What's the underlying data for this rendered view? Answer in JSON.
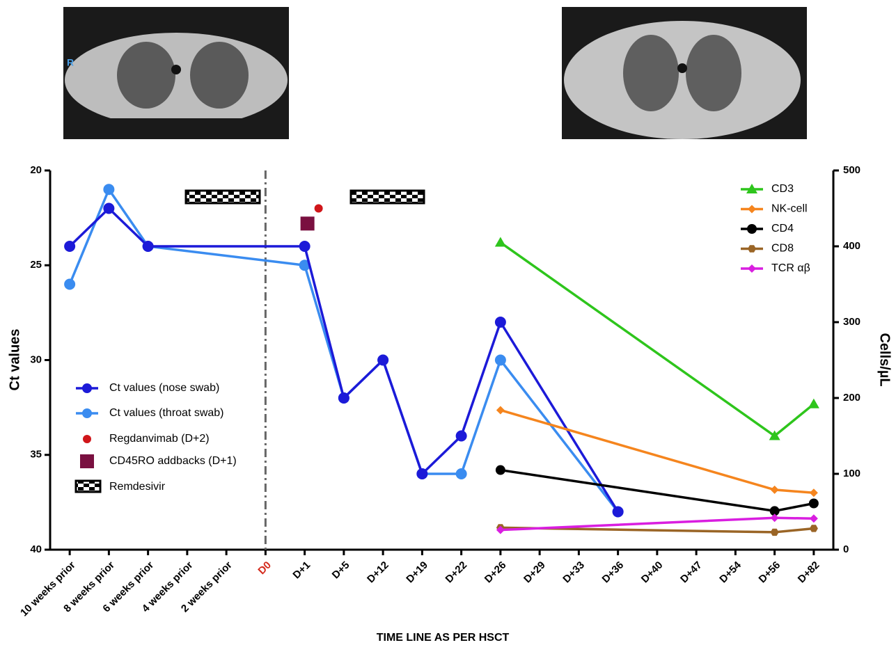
{
  "chart_data": {
    "type": "line",
    "x_label": "TIME LINE AS PER HSCT",
    "y_label": "Ct values",
    "y2_label": "Cells/µL",
    "image_label": "R",
    "categories": [
      "10 weeks prior",
      "8 weeks prior",
      "6 weeks prior",
      "4 weeks prior",
      "2 weeks prior",
      "D0",
      "D+1",
      "D+5",
      "D+12",
      "D+19",
      "D+22",
      "D+26",
      "D+29",
      "D+33",
      "D+36",
      "D+40",
      "D+47",
      "D+54",
      "D+56",
      "D+82"
    ],
    "highlight_index": 5,
    "highlight_color": "#d42a1c",
    "ylim": [
      40,
      20
    ],
    "yticks": [
      20,
      25,
      30,
      35,
      40
    ],
    "y2lim": [
      0,
      500
    ],
    "y2ticks": [
      0,
      100,
      200,
      300,
      400,
      500
    ],
    "treatment": "Remdesivir",
    "series": [
      {
        "name": "Ct values (throat swab)",
        "color": "#3a8cf0",
        "marker": "circle",
        "line": true,
        "legend": "left",
        "x": [
          "10 weeks prior",
          "8 weeks prior",
          "6 weeks prior",
          "D+1",
          "D+5",
          "D+12",
          "D+19",
          "D+22",
          "D+26",
          "D+36"
        ],
        "values": [
          26,
          21,
          24,
          25,
          32,
          30,
          36,
          36,
          30,
          38
        ]
      },
      {
        "name": "Ct values (nose swab)",
        "color": "#1c1ad8",
        "marker": "circle",
        "line": true,
        "legend": "left",
        "x": [
          "10 weeks prior",
          "8 weeks prior",
          "6 weeks prior",
          "D+1",
          "D+5",
          "D+12",
          "D+19",
          "D+22",
          "D+26",
          "D+36"
        ],
        "values": [
          24,
          22,
          24,
          24,
          32,
          30,
          36,
          34,
          28,
          38
        ]
      },
      {
        "name": "Regdanvimab (D+2)",
        "color": "#d0161a",
        "marker": "dot",
        "line": false,
        "legend": "left",
        "x": [
          "D+1"
        ],
        "values": [
          22
        ]
      },
      {
        "name": "CD45RO addbacks (D+1)",
        "color": "#7a1040",
        "marker": "square",
        "line": false,
        "legend": "left",
        "x": [
          "D+1"
        ],
        "values": [
          22.8
        ]
      },
      {
        "name": "CD3",
        "color": "#2ec51c",
        "marker": "triangle",
        "line": true,
        "axis": "y2",
        "legend": "right",
        "x": [
          "D+26",
          "D+56",
          "D+82"
        ],
        "values": [
          405,
          150,
          192
        ]
      },
      {
        "name": "NK-cell",
        "color": "#f5851e",
        "marker": "diamond",
        "line": true,
        "axis": "y2",
        "legend": "right",
        "x": [
          "D+26",
          "D+56",
          "D+82"
        ],
        "values": [
          184,
          79,
          75
        ]
      },
      {
        "name": "CD4",
        "color": "#000000",
        "marker": "circle",
        "line": true,
        "axis": "y2",
        "legend": "right",
        "x": [
          "D+26",
          "D+56",
          "D+82"
        ],
        "values": [
          105,
          51,
          61
        ]
      },
      {
        "name": "CD8",
        "color": "#9a6526",
        "marker": "hexagon",
        "line": true,
        "axis": "y2",
        "legend": "right",
        "x": [
          "D+26",
          "D+56",
          "D+82"
        ],
        "values": [
          29,
          23,
          28
        ]
      },
      {
        "name": "TCR αβ",
        "color": "#d91ee0",
        "marker": "diamond",
        "line": true,
        "axis": "y2",
        "legend": "right",
        "x": [
          "D+26",
          "D+56",
          "D+82"
        ],
        "values": [
          26,
          42,
          41
        ]
      }
    ]
  }
}
